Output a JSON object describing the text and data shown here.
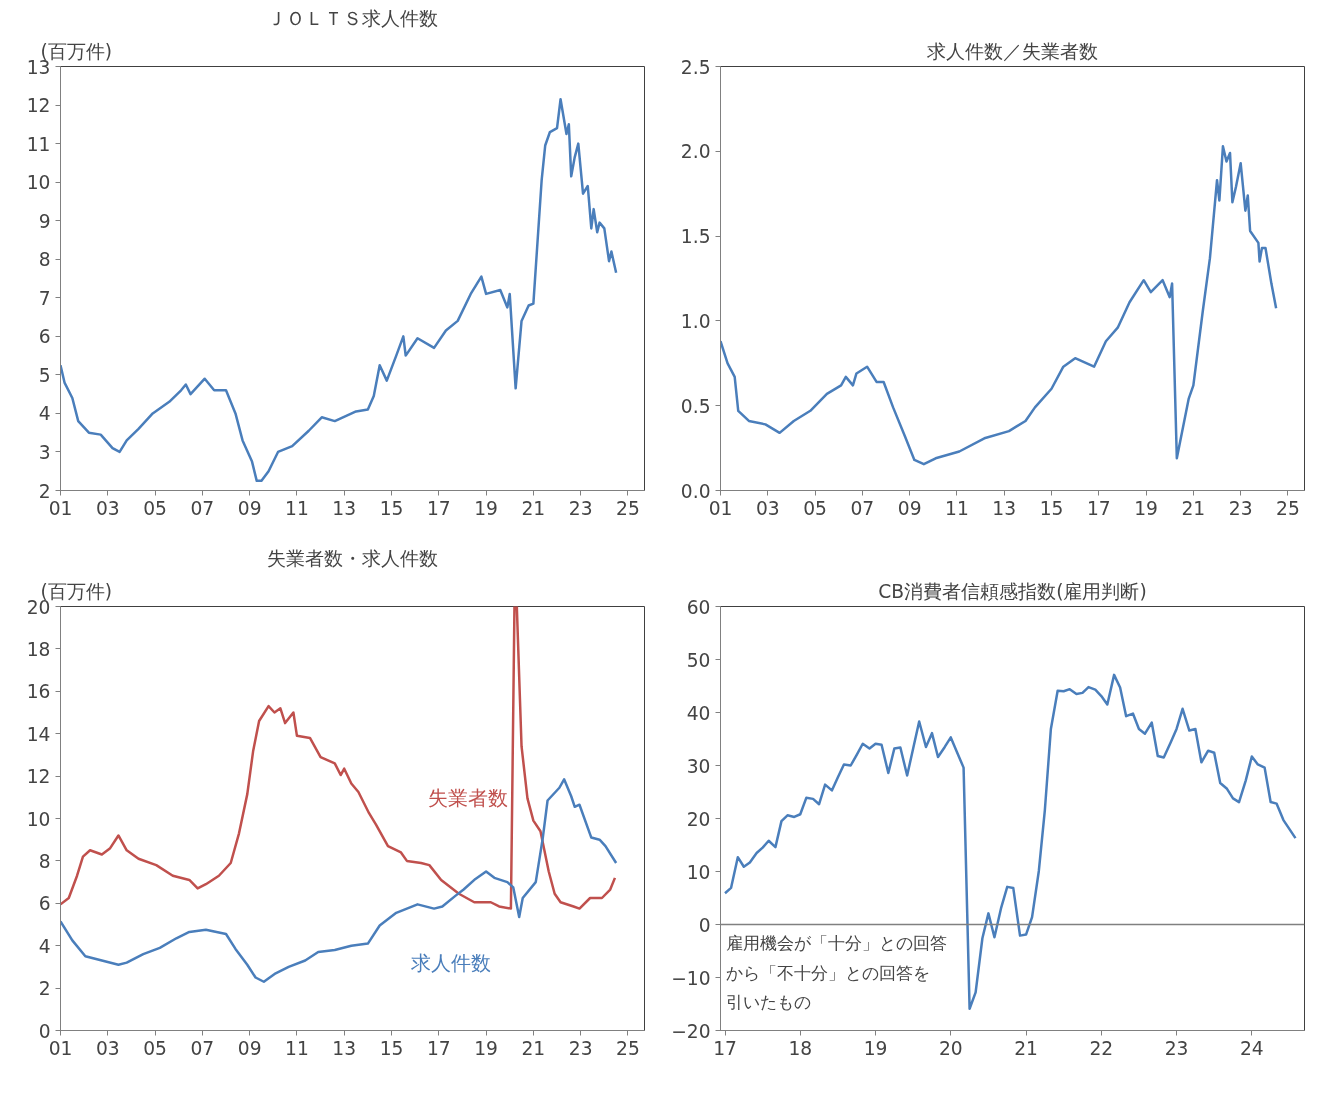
{
  "chart_data": [
    {
      "type": "line",
      "title": "ＪＯＬＴＳ求人件数",
      "ylabel": "(百万件)",
      "xlim": [
        2001,
        2025.7
      ],
      "ylim": [
        2,
        13
      ],
      "xticks": [
        {
          "value": 2001,
          "label": "01"
        },
        {
          "value": 2003,
          "label": "03"
        },
        {
          "value": 2005,
          "label": "05"
        },
        {
          "value": 2007,
          "label": "07"
        },
        {
          "value": 2009,
          "label": "09"
        },
        {
          "value": 2011,
          "label": "11"
        },
        {
          "value": 2013,
          "label": "13"
        },
        {
          "value": 2015,
          "label": "15"
        },
        {
          "value": 2017,
          "label": "17"
        },
        {
          "value": 2019,
          "label": "19"
        },
        {
          "value": 2021,
          "label": "21"
        },
        {
          "value": 2023,
          "label": "23"
        },
        {
          "value": 2025,
          "label": "25"
        }
      ],
      "yticks": [
        2,
        3,
        4,
        5,
        6,
        7,
        8,
        9,
        10,
        11,
        12,
        13
      ],
      "grid": false,
      "series": [
        {
          "color": "#4a7ebb",
          "x": [
            2001.0,
            2001.17,
            2001.5,
            2001.75,
            2002.2,
            2002.7,
            2003.2,
            2003.5,
            2003.8,
            2004.3,
            2004.9,
            2005.6,
            2006.1,
            2006.3,
            2006.5,
            2007.1,
            2007.5,
            2008.0,
            2008.4,
            2008.7,
            2009.1,
            2009.3,
            2009.5,
            2009.8,
            2010.2,
            2010.8,
            2011.5,
            2012.05,
            2012.6,
            2013.5,
            2014.0,
            2014.25,
            2014.5,
            2014.8,
            2015.2,
            2015.5,
            2015.6,
            2016.1,
            2016.8,
            2017.3,
            2017.8,
            2018.35,
            2018.8,
            2019.0,
            2019.6,
            2019.9,
            2020.0,
            2020.25,
            2020.5,
            2020.8,
            2021.0,
            2021.35,
            2021.5,
            2021.7,
            2022.0,
            2022.15,
            2022.4,
            2022.5,
            2022.6,
            2022.75,
            2022.9,
            2023.1,
            2023.3,
            2023.45,
            2023.55,
            2023.7,
            2023.8,
            2024.0,
            2024.2,
            2024.3,
            2024.5
          ],
          "values": [
            5.25,
            4.8,
            4.4,
            3.8,
            3.5,
            3.45,
            3.1,
            3.0,
            3.3,
            3.6,
            4.0,
            4.3,
            4.6,
            4.75,
            4.5,
            4.9,
            4.6,
            4.6,
            4.0,
            3.3,
            2.75,
            2.25,
            2.25,
            2.5,
            3.0,
            3.15,
            3.55,
            3.9,
            3.8,
            4.05,
            4.1,
            4.45,
            5.25,
            4.85,
            5.5,
            6.0,
            5.5,
            5.95,
            5.7,
            6.15,
            6.4,
            7.1,
            7.55,
            7.1,
            7.2,
            6.75,
            7.1,
            4.65,
            6.4,
            6.8,
            6.85,
            10.05,
            10.95,
            11.3,
            11.4,
            12.15,
            11.25,
            11.5,
            10.15,
            10.65,
            11.0,
            9.7,
            9.9,
            8.8,
            9.3,
            8.7,
            8.95,
            8.8,
            7.95,
            8.2,
            7.65
          ]
        }
      ]
    },
    {
      "type": "line",
      "title": "求人件数／失業者数",
      "xlim": [
        2001,
        2025.7
      ],
      "ylim": [
        0,
        2.5
      ],
      "xticks": [
        {
          "value": 2001,
          "label": "01"
        },
        {
          "value": 2003,
          "label": "03"
        },
        {
          "value": 2005,
          "label": "05"
        },
        {
          "value": 2007,
          "label": "07"
        },
        {
          "value": 2009,
          "label": "09"
        },
        {
          "value": 2011,
          "label": "11"
        },
        {
          "value": 2013,
          "label": "13"
        },
        {
          "value": 2015,
          "label": "15"
        },
        {
          "value": 2017,
          "label": "17"
        },
        {
          "value": 2019,
          "label": "19"
        },
        {
          "value": 2021,
          "label": "21"
        },
        {
          "value": 2023,
          "label": "23"
        },
        {
          "value": 2025,
          "label": "25"
        }
      ],
      "yticks": [
        {
          "value": 0,
          "label": "0.0"
        },
        {
          "value": 0.5,
          "label": "0.5"
        },
        {
          "value": 1,
          "label": "1.0"
        },
        {
          "value": 1.5,
          "label": "1.5"
        },
        {
          "value": 2,
          "label": "2.0"
        },
        {
          "value": 2.5,
          "label": "2.5"
        }
      ],
      "grid": false,
      "series": [
        {
          "color": "#4a7ebb",
          "x": [
            2001.0,
            2001.3,
            2001.6,
            2001.75,
            2002.2,
            2002.9,
            2003.5,
            2004.1,
            2004.8,
            2005.5,
            2006.1,
            2006.3,
            2006.6,
            2006.75,
            2007.2,
            2007.6,
            2007.9,
            2008.3,
            2008.8,
            2009.2,
            2009.6,
            2010.1,
            2011.1,
            2012.2,
            2013.2,
            2013.9,
            2014.3,
            2015.0,
            2015.5,
            2016.0,
            2016.8,
            2017.3,
            2017.8,
            2018.3,
            2018.9,
            2019.2,
            2019.7,
            2020.0,
            2020.1,
            2020.3,
            2020.8,
            2021.0,
            2021.4,
            2021.7,
            2022.0,
            2022.1,
            2022.25,
            2022.4,
            2022.55,
            2022.65,
            2022.8,
            2023.0,
            2023.2,
            2023.3,
            2023.4,
            2023.75,
            2023.8,
            2023.9,
            2024.05,
            2024.3,
            2024.5
          ],
          "values": [
            0.88,
            0.75,
            0.67,
            0.47,
            0.41,
            0.39,
            0.34,
            0.41,
            0.47,
            0.57,
            0.62,
            0.67,
            0.62,
            0.69,
            0.73,
            0.64,
            0.64,
            0.49,
            0.32,
            0.18,
            0.155,
            0.19,
            0.23,
            0.31,
            0.35,
            0.41,
            0.49,
            0.6,
            0.73,
            0.78,
            0.73,
            0.88,
            0.96,
            1.11,
            1.24,
            1.17,
            1.24,
            1.14,
            1.22,
            0.19,
            0.54,
            0.62,
            1.06,
            1.37,
            1.83,
            1.71,
            2.03,
            1.94,
            1.99,
            1.7,
            1.79,
            1.93,
            1.65,
            1.74,
            1.53,
            1.46,
            1.35,
            1.43,
            1.43,
            1.22,
            1.075
          ]
        }
      ]
    },
    {
      "type": "line",
      "title": "失業者数・求人件数",
      "ylabel": "(百万件)",
      "xlim": [
        2001,
        2025.7
      ],
      "ylim": [
        0,
        20
      ],
      "xticks": [
        {
          "value": 2001,
          "label": "01"
        },
        {
          "value": 2003,
          "label": "03"
        },
        {
          "value": 2005,
          "label": "05"
        },
        {
          "value": 2007,
          "label": "07"
        },
        {
          "value": 2009,
          "label": "09"
        },
        {
          "value": 2011,
          "label": "11"
        },
        {
          "value": 2013,
          "label": "13"
        },
        {
          "value": 2015,
          "label": "15"
        },
        {
          "value": 2017,
          "label": "17"
        },
        {
          "value": 2019,
          "label": "19"
        },
        {
          "value": 2021,
          "label": "21"
        },
        {
          "value": 2023,
          "label": "23"
        },
        {
          "value": 2025,
          "label": "25"
        }
      ],
      "yticks": [
        0,
        2,
        4,
        6,
        8,
        10,
        12,
        14,
        16,
        18,
        20
      ],
      "grid": false,
      "series": [
        {
          "name": "失業者数",
          "color": "#c0504d",
          "x": [
            2001.0,
            2001.35,
            2001.7,
            2001.95,
            2002.25,
            2002.75,
            2003.1,
            2003.45,
            2003.8,
            2004.3,
            2005.05,
            2005.75,
            2006.45,
            2006.8,
            2007.15,
            2007.7,
            2008.2,
            2008.55,
            2008.9,
            2009.15,
            2009.4,
            2009.8,
            2010.05,
            2010.3,
            2010.5,
            2010.85,
            2011.0,
            2011.55,
            2012.0,
            2012.6,
            2012.85,
            2013.0,
            2013.3,
            2013.6,
            2014.05,
            2014.35,
            2014.85,
            2015.4,
            2015.65,
            2016.25,
            2016.6,
            2017.1,
            2017.85,
            2018.5,
            2019.2,
            2019.55,
            2020.05,
            2020.2,
            2020.3,
            2020.5,
            2020.75,
            2021.0,
            2021.3,
            2021.65,
            2021.9,
            2022.15,
            2022.7,
            2022.95,
            2023.4,
            2023.9,
            2024.25,
            2024.45
          ],
          "values": [
            5.95,
            6.25,
            7.3,
            8.2,
            8.5,
            8.3,
            8.6,
            9.2,
            8.5,
            8.1,
            7.8,
            7.3,
            7.1,
            6.7,
            6.9,
            7.3,
            7.9,
            9.3,
            11.15,
            13.2,
            14.6,
            15.3,
            15.0,
            15.2,
            14.5,
            15.0,
            13.9,
            13.8,
            12.9,
            12.6,
            12.05,
            12.35,
            11.65,
            11.25,
            10.25,
            9.7,
            8.7,
            8.4,
            8.0,
            7.9,
            7.8,
            7.1,
            6.45,
            6.05,
            6.05,
            5.85,
            5.75,
            20,
            20,
            13.4,
            10.95,
            9.9,
            9.4,
            7.5,
            6.45,
            6.05,
            5.85,
            5.75,
            6.25,
            6.25,
            6.65,
            7.2
          ]
        },
        {
          "name": "求人件数",
          "color": "#4a7ebb",
          "x": [
            2001.0,
            2001.5,
            2002.05,
            2002.75,
            2003.45,
            2003.8,
            2004.5,
            2005.2,
            2005.9,
            2006.45,
            2007.15,
            2008.0,
            2008.4,
            2008.9,
            2009.25,
            2009.6,
            2010.1,
            2010.65,
            2011.35,
            2011.9,
            2012.6,
            2013.3,
            2014.0,
            2014.5,
            2015.2,
            2016.1,
            2016.8,
            2017.15,
            2017.7,
            2018.05,
            2018.55,
            2019.0,
            2019.35,
            2019.9,
            2020.15,
            2020.4,
            2020.55,
            2021.1,
            2021.4,
            2021.6,
            2022.1,
            2022.3,
            2022.6,
            2022.75,
            2022.95,
            2023.45,
            2023.8,
            2024.05,
            2024.5
          ],
          "values": [
            5.15,
            4.25,
            3.5,
            3.3,
            3.1,
            3.2,
            3.6,
            3.9,
            4.35,
            4.65,
            4.75,
            4.55,
            3.85,
            3.1,
            2.5,
            2.3,
            2.7,
            3.0,
            3.3,
            3.7,
            3.8,
            4.0,
            4.1,
            4.95,
            5.55,
            5.95,
            5.75,
            5.85,
            6.35,
            6.65,
            7.15,
            7.5,
            7.2,
            7.0,
            6.75,
            5.35,
            6.25,
            7.0,
            9.1,
            10.85,
            11.45,
            11.85,
            11.05,
            10.55,
            10.65,
            9.1,
            9.0,
            8.7,
            7.9
          ]
        }
      ]
    },
    {
      "type": "line",
      "title": "CB消費者信頼感指数(雇用判断)",
      "xlim": [
        2016.94,
        2024.7
      ],
      "ylim": [
        -20,
        60
      ],
      "xticks": [
        {
          "value": 2017,
          "label": "17"
        },
        {
          "value": 2018,
          "label": "18"
        },
        {
          "value": 2019,
          "label": "19"
        },
        {
          "value": 2020,
          "label": "20"
        },
        {
          "value": 2021,
          "label": "21"
        },
        {
          "value": 2022,
          "label": "22"
        },
        {
          "value": 2023,
          "label": "23"
        },
        {
          "value": 2024,
          "label": "24"
        }
      ],
      "yticks": [
        -20,
        -10,
        0,
        10,
        20,
        30,
        40,
        50,
        60
      ],
      "grid": false,
      "ref_lines": [
        {
          "axis": "y",
          "value": 0,
          "color": "#808080"
        }
      ],
      "annotations": [
        "雇用機会が「十分」との回答",
        "から「不十分」との回答を",
        "引いたもの"
      ],
      "series": [
        {
          "color": "#4a7ebb",
          "x": [
            2017.0,
            2017.08,
            2017.17,
            2017.25,
            2017.33,
            2017.42,
            2017.5,
            2017.58,
            2017.67,
            2017.75,
            2017.83,
            2017.92,
            2018.0,
            2018.08,
            2018.17,
            2018.25,
            2018.33,
            2018.42,
            2018.5,
            2018.58,
            2018.67,
            2018.75,
            2018.83,
            2018.92,
            2019.0,
            2019.08,
            2019.17,
            2019.25,
            2019.33,
            2019.42,
            2019.5,
            2019.58,
            2019.67,
            2019.75,
            2019.83,
            2019.92,
            2020.0,
            2020.08,
            2020.17,
            2020.25,
            2020.33,
            2020.42,
            2020.5,
            2020.58,
            2020.67,
            2020.75,
            2020.83,
            2020.92,
            2021.0,
            2021.08,
            2021.17,
            2021.25,
            2021.33,
            2021.42,
            2021.5,
            2021.58,
            2021.67,
            2021.75,
            2021.83,
            2021.92,
            2022.0,
            2022.08,
            2022.17,
            2022.25,
            2022.33,
            2022.42,
            2022.5,
            2022.58,
            2022.67,
            2022.75,
            2022.83,
            2022.92,
            2023.0,
            2023.08,
            2023.17,
            2023.25,
            2023.33,
            2023.42,
            2023.5,
            2023.58,
            2023.67,
            2023.75,
            2023.83,
            2023.92,
            2024.0,
            2024.08,
            2024.17,
            2024.25,
            2024.33,
            2024.42,
            2024.5,
            2024.58
          ],
          "values": [
            5.9,
            6.9,
            12.7,
            10.9,
            11.7,
            13.5,
            14.5,
            15.8,
            14.6,
            19.5,
            20.6,
            20.3,
            20.8,
            23.9,
            23.7,
            22.7,
            26.4,
            25.3,
            27.8,
            30.2,
            30.0,
            32.0,
            34.1,
            33.2,
            34.1,
            33.9,
            28.6,
            33.2,
            33.4,
            28.1,
            33.2,
            38.3,
            33.5,
            36.1,
            31.6,
            33.5,
            35.3,
            32.6,
            29.6,
            -15.9,
            -12.8,
            -2.6,
            2.1,
            -2.4,
            3.2,
            7.1,
            6.9,
            -2.1,
            -1.9,
            1.4,
            10.1,
            21.6,
            36.9,
            44.1,
            44.0,
            44.4,
            43.5,
            43.7,
            44.8,
            44.3,
            43.1,
            41.5,
            47.1,
            44.7,
            39.3,
            39.8,
            36.9,
            36.0,
            38.1,
            31.8,
            31.5,
            34.3,
            36.9,
            40.7,
            36.6,
            36.9,
            30.6,
            32.8,
            32.4,
            26.7,
            25.6,
            23.8,
            23.1,
            27.2,
            31.7,
            30.2,
            29.6,
            23.1,
            22.8,
            19.7,
            18.0,
            16.3
          ]
        }
      ]
    }
  ]
}
